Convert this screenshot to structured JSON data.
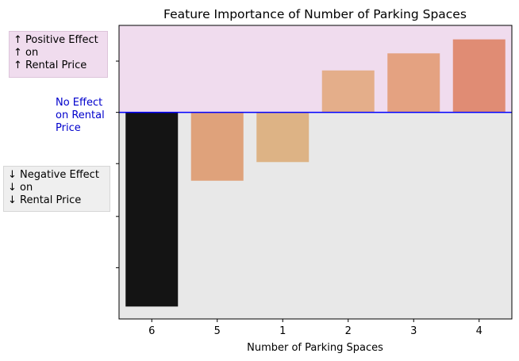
{
  "chart_data": {
    "type": "bar",
    "title": "Feature Importance of Number of Parking Spaces",
    "xlabel": "Number of Parking Spaces",
    "ylabel": "",
    "categories": [
      "6",
      "5",
      "1",
      "2",
      "3",
      "4"
    ],
    "values": [
      -1.25,
      -0.44,
      -0.32,
      0.27,
      0.38,
      0.47
    ],
    "bar_colors": [
      "#141414",
      "#dfa27b",
      "#ddb385",
      "#e4ae8a",
      "#e4a281",
      "#e08c74"
    ],
    "ylim": [
      -1.33,
      0.56
    ],
    "yticks": [
      -1.0,
      -0.67,
      -0.33,
      0.0,
      0.33
    ],
    "ytick_labels": [
      "",
      "",
      "",
      "",
      ""
    ],
    "positive_region_color": "#f0dcee",
    "negative_region_color": "#e8e8e8",
    "zero_line_color": "#0000ff",
    "grid": false,
    "legend": "none"
  },
  "annotations": {
    "positive": [
      "↑ Positive Effect",
      "↑ on",
      "↑ Rental Price"
    ],
    "zero": [
      "No Effect",
      "on Rental",
      "Price"
    ],
    "negative": [
      "↓ Negative Effect",
      "↓ on",
      "↓ Rental Price"
    ]
  }
}
